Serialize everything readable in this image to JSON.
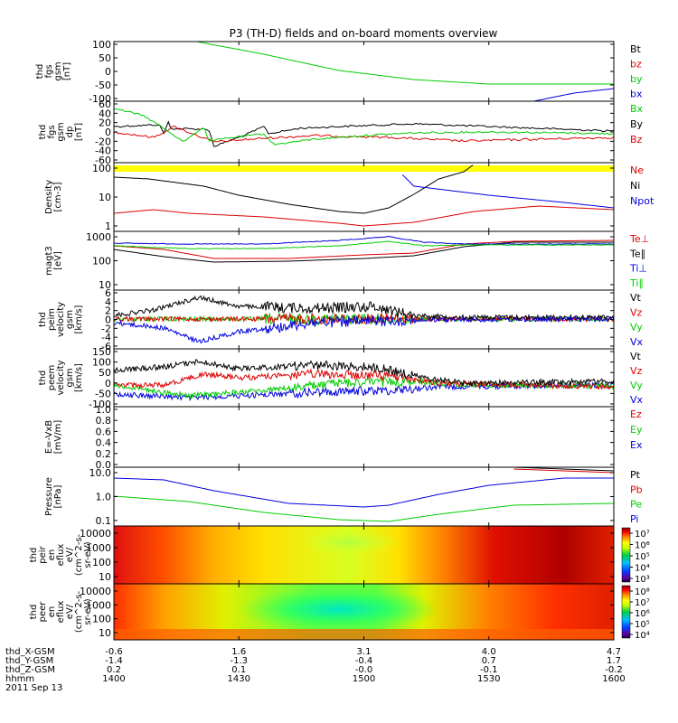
{
  "title": "P3 (TH-D) fields and on-board moments overview",
  "colors": {
    "black": "#000000",
    "red": "#dd0000",
    "green": "#00cc00",
    "blue": "#0000dd",
    "yellow": "#ffff00"
  },
  "chart_data": [
    {
      "type": "line",
      "id": "p1",
      "ylabel": [
        "thd",
        "fgs",
        "gsm",
        "[nT]"
      ],
      "yticks": [
        "100",
        "50",
        "0",
        "-50",
        "-100"
      ],
      "ylim": [
        -100,
        100
      ],
      "series": [
        {
          "name": "Bt",
          "color": "black"
        },
        {
          "name": "bz",
          "color": "red"
        },
        {
          "name": "by",
          "color": "green"
        },
        {
          "name": "bx",
          "color": "blue"
        }
      ]
    },
    {
      "type": "line",
      "id": "p2",
      "ylabel": [
        "thd",
        "fgs",
        "gsm",
        "dp",
        "[nT]"
      ],
      "yticks": [
        "60",
        "40",
        "20",
        "0",
        "-20",
        "-40",
        "-60"
      ],
      "ylim": [
        -70,
        60
      ],
      "series": [
        {
          "name": "Bx",
          "color": "green"
        },
        {
          "name": "By",
          "color": "black"
        },
        {
          "name": "Bz",
          "color": "red"
        }
      ]
    },
    {
      "type": "line",
      "id": "p3",
      "ylabel": [
        "Density",
        "[cm-3]"
      ],
      "yticks": [
        "100",
        "10",
        "1"
      ],
      "scale": "log",
      "series": [
        {
          "name": "Ne",
          "color": "red"
        },
        {
          "name": "Ni",
          "color": "black"
        },
        {
          "name": "Npot",
          "color": "blue"
        }
      ]
    },
    {
      "type": "line",
      "id": "p4",
      "ylabel": [
        "magt3",
        "[eV]"
      ],
      "yticks": [
        "1000",
        "100",
        "10"
      ],
      "scale": "log",
      "series": [
        {
          "name": "Te⊥",
          "color": "red"
        },
        {
          "name": "Te∥",
          "color": "black"
        },
        {
          "name": "Ti⊥",
          "color": "blue"
        },
        {
          "name": "Ti∥",
          "color": "green"
        }
      ]
    },
    {
      "type": "line",
      "id": "p5",
      "ylabel": [
        "thd",
        "peim",
        "velocity",
        "gsm",
        "[km/s]"
      ],
      "yticks": [
        "6",
        "4",
        "2",
        "0",
        "-2",
        "-4",
        "-6"
      ],
      "ylim": [
        -6,
        6
      ],
      "series": [
        {
          "name": "Vt",
          "color": "black"
        },
        {
          "name": "Vz",
          "color": "red"
        },
        {
          "name": "Vy",
          "color": "green"
        },
        {
          "name": "Vx",
          "color": "blue"
        }
      ]
    },
    {
      "type": "line",
      "id": "p6",
      "ylabel": [
        "thd",
        "peem",
        "velocity",
        "gsm",
        "[km/s]"
      ],
      "yticks": [
        "150",
        "100",
        "50",
        "0",
        "-50",
        "-100"
      ],
      "ylim": [
        -100,
        150
      ],
      "series": [
        {
          "name": "Vt",
          "color": "black"
        },
        {
          "name": "Vz",
          "color": "red"
        },
        {
          "name": "Vy",
          "color": "green"
        },
        {
          "name": "Vx",
          "color": "blue"
        }
      ]
    },
    {
      "type": "line",
      "id": "p7",
      "ylabel": [
        "E=-VxB",
        "[mV/m]"
      ],
      "yticks": [
        "1.0",
        "0.8",
        "0.6",
        "0.4",
        "0.2",
        "0.0"
      ],
      "ylim": [
        0,
        1
      ],
      "series": [
        {
          "name": "Ez",
          "color": "red"
        },
        {
          "name": "Ey",
          "color": "green"
        },
        {
          "name": "Ex",
          "color": "blue"
        }
      ]
    },
    {
      "type": "line",
      "id": "p8",
      "ylabel": [
        "Pressure",
        "[nPa]"
      ],
      "yticks": [
        "10.0",
        "1.0",
        "0.1"
      ],
      "scale": "log",
      "series": [
        {
          "name": "Pt",
          "color": "black"
        },
        {
          "name": "Pb",
          "color": "red"
        },
        {
          "name": "Pe",
          "color": "green"
        },
        {
          "name": "Pi",
          "color": "blue"
        }
      ]
    },
    {
      "type": "heatmap",
      "id": "p9",
      "ylabel": [
        "thd",
        "peir",
        "en",
        "eflux",
        "eV/",
        "(cm^2-s-",
        "sr-eV)"
      ],
      "yticks": [
        "10000",
        "1000",
        "100",
        "10"
      ],
      "colorbar": [
        "10⁷",
        "10⁶",
        "10⁵",
        "10⁴",
        "10³"
      ]
    },
    {
      "type": "heatmap",
      "id": "p10",
      "ylabel": [
        "thd",
        "peer",
        "en",
        "eflux",
        "eV/",
        "(cm^2-s-",
        "sr-eV)"
      ],
      "yticks": [
        "10000",
        "1000",
        "100",
        "10"
      ],
      "colorbar": [
        "10⁸",
        "10⁷",
        "10⁶",
        "10⁵",
        "10⁴"
      ]
    }
  ],
  "xaxis": {
    "labels": [
      "thd_X-GSM",
      "thd_Y-GSM",
      "thd_Z-GSM",
      "hhmm",
      "2011 Sep 13"
    ],
    "rows": [
      [
        "-0.6",
        "1.6",
        "3.1",
        "4.0",
        "4.7"
      ],
      [
        "-1.4",
        "-1.3",
        "-0.4",
        "0.7",
        "1.7"
      ],
      [
        "0.2",
        "0.1",
        "-0.0",
        "-0.1",
        "-0.2"
      ],
      [
        "1400",
        "1430",
        "1500",
        "1530",
        "1600"
      ]
    ]
  }
}
